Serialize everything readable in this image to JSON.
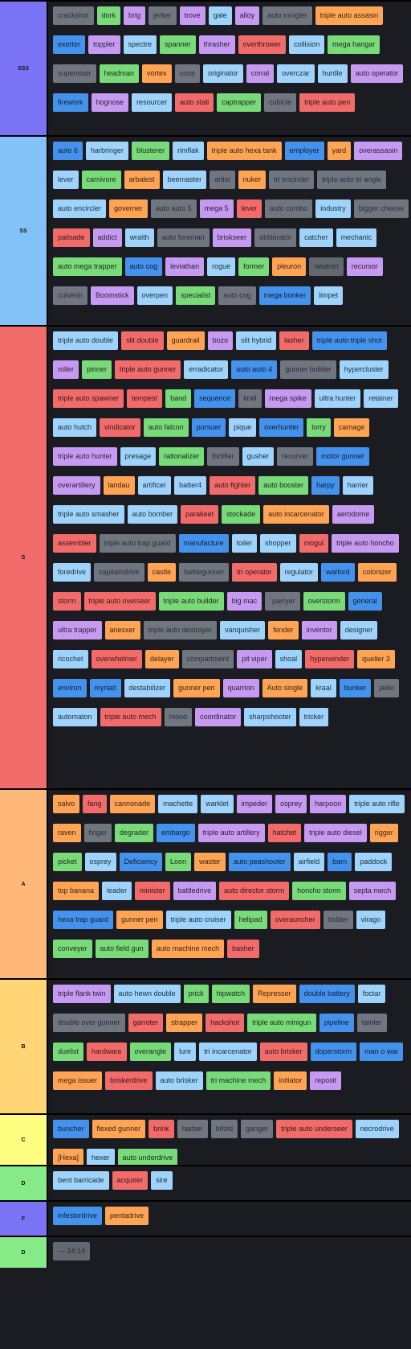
{
  "tiers": [
    {
      "label": "SSS",
      "color": "#7b73f5",
      "items": [
        [
          "crackshot",
          "gray"
        ],
        [
          "dork",
          "green"
        ],
        [
          "brig",
          "purple"
        ],
        [
          "jerker",
          "gray"
        ],
        [
          "trove",
          "purple"
        ],
        [
          "gale",
          "lblue"
        ],
        [
          "alloy",
          "purple"
        ],
        [
          "auto mingler",
          "gray"
        ],
        [
          "triple auto assasin",
          "orange"
        ],
        [
          "exerter",
          "blue"
        ],
        [
          "toppler",
          "purple"
        ],
        [
          "spectre",
          "lblue"
        ],
        [
          "spanner",
          "green"
        ],
        [
          "thrasher",
          "purple"
        ],
        [
          "overthrower",
          "red"
        ],
        [
          "collision",
          "lblue"
        ],
        [
          "mega hangar",
          "green"
        ],
        [
          "supervisor",
          "gray"
        ],
        [
          "headman",
          "green"
        ],
        [
          "vortex",
          "orange"
        ],
        [
          "coop",
          "gray"
        ],
        [
          "originator",
          "lblue"
        ],
        [
          "corral",
          "purple"
        ],
        [
          "overczar",
          "lblue"
        ],
        [
          "hurdle",
          "lblue"
        ],
        [
          "auto operator",
          "purple"
        ],
        [
          "firework",
          "blue"
        ],
        [
          "hognose",
          "purple"
        ],
        [
          "resourcer",
          "lblue"
        ],
        [
          "auto stall",
          "red"
        ],
        [
          "captrapper",
          "green"
        ],
        [
          "cubicle",
          "gray"
        ],
        [
          "triple auto pen",
          "red"
        ]
      ]
    },
    {
      "label": "SS",
      "color": "#82c2f8",
      "items": [
        [
          "auto 6",
          "blue"
        ],
        [
          "harbringer",
          "lblue"
        ],
        [
          "blusterer",
          "green"
        ],
        [
          "rimflak",
          "lblue"
        ],
        [
          "triple auto hexa tank",
          "orange"
        ],
        [
          "employer",
          "blue"
        ],
        [
          "yard",
          "orange"
        ],
        [
          "overassasin",
          "purple"
        ],
        [
          "lever",
          "lblue"
        ],
        [
          "carnivore",
          "green"
        ],
        [
          "arbalest",
          "orange"
        ],
        [
          "beemaster",
          "lblue"
        ],
        [
          "artist",
          "gray"
        ],
        [
          "nuker",
          "orange"
        ],
        [
          "tri encircler",
          "gray"
        ],
        [
          "triple auto tri angle",
          "gray"
        ],
        [
          "auto encircler",
          "lblue"
        ],
        [
          "governer",
          "orange"
        ],
        [
          "auto auto 5",
          "gray"
        ],
        [
          "mega 5",
          "purple"
        ],
        [
          "lever",
          "red"
        ],
        [
          "auto combo",
          "gray"
        ],
        [
          "industry",
          "lblue"
        ],
        [
          "bigger cheese",
          "gray"
        ],
        [
          "palisade",
          "red"
        ],
        [
          "addict",
          "purple"
        ],
        [
          "wraith",
          "lblue"
        ],
        [
          "auto foreman",
          "gray"
        ],
        [
          "briskseer",
          "purple"
        ],
        [
          "obliterator",
          "gray"
        ],
        [
          "catcher",
          "lblue"
        ],
        [
          "mechanic",
          "lblue"
        ],
        [
          "auto mega trapper",
          "green"
        ],
        [
          "auto cog",
          "blue"
        ],
        [
          "leviathan",
          "purple"
        ],
        [
          "rogue",
          "lblue"
        ],
        [
          "former",
          "green"
        ],
        [
          "pleuron",
          "orange"
        ],
        [
          "neutron",
          "dgray"
        ],
        [
          "recursor",
          "purple"
        ],
        [
          "culverin",
          "gray"
        ],
        [
          "Boomstick",
          "purple"
        ],
        [
          "overpen",
          "lblue"
        ],
        [
          "specialist",
          "green"
        ],
        [
          "auto cog",
          "gray"
        ],
        [
          "mega bonker",
          "blue"
        ],
        [
          "limpet",
          "lblue"
        ]
      ]
    },
    {
      "label": "S",
      "color": "#f26b6b",
      "items": [
        [
          "triple auto double",
          "lblue"
        ],
        [
          "slit double",
          "red"
        ],
        [
          "guardrail",
          "orange"
        ],
        [
          "bozo",
          "purple"
        ],
        [
          "slit hybrid",
          "lblue"
        ],
        [
          "lasher",
          "red"
        ],
        [
          "triple auto triple shot",
          "blue"
        ],
        [
          "roller",
          "purple"
        ],
        [
          "pinner",
          "green"
        ],
        [
          "triple auto gunner",
          "red"
        ],
        [
          "erradicator",
          "lblue"
        ],
        [
          "auto auto 4",
          "blue"
        ],
        [
          "gunner builder",
          "gray"
        ],
        [
          "hypercluster",
          "lblue"
        ],
        [
          "triple auto spawner",
          "red"
        ],
        [
          "tempest",
          "red"
        ],
        [
          "band",
          "green"
        ],
        [
          "sequence",
          "blue"
        ],
        [
          "krall",
          "gray"
        ],
        [
          "mega spike",
          "purple"
        ],
        [
          "ultra hunter",
          "lblue"
        ],
        [
          "retainer",
          "lblue"
        ],
        [
          "auto hutch",
          "lblue"
        ],
        [
          "vindicator",
          "red"
        ],
        [
          "auto falcon",
          "green"
        ],
        [
          "pursuer",
          "blue"
        ],
        [
          "pique",
          "lblue"
        ],
        [
          "overhunter",
          "blue"
        ],
        [
          "lorry",
          "green"
        ],
        [
          "carnage",
          "orange"
        ],
        [
          "triple auto hunter",
          "purple"
        ],
        [
          "presage",
          "lblue"
        ],
        [
          "rationalizer",
          "green"
        ],
        [
          "fortifier",
          "gray"
        ],
        [
          "gusher",
          "lblue"
        ],
        [
          "recurver",
          "gray"
        ],
        [
          "motor gunner",
          "blue"
        ],
        [
          "overartillery",
          "purple"
        ],
        [
          "landau",
          "orange"
        ],
        [
          "artificer",
          "lblue"
        ],
        [
          "batter4",
          "lblue"
        ],
        [
          "auto fighter",
          "red"
        ],
        [
          "auto booster",
          "green"
        ],
        [
          "harpy",
          "blue"
        ],
        [
          "harrier",
          "lblue"
        ],
        [
          "triple auto smasher",
          "lblue"
        ],
        [
          "auto bomber",
          "lblue"
        ],
        [
          "parakeet",
          "red"
        ],
        [
          "stockade",
          "green"
        ],
        [
          "auto incarcenator",
          "orange"
        ],
        [
          "aerodome",
          "purple"
        ],
        [
          "assembler",
          "red"
        ],
        [
          "triple auto trap guard",
          "gray"
        ],
        [
          "manufacture",
          "blue"
        ],
        [
          "toiler",
          "lblue"
        ],
        [
          "shopper",
          "lblue"
        ],
        [
          "mogul",
          "red"
        ],
        [
          "triple auto honcho",
          "purple"
        ],
        [
          "foredrive",
          "lblue"
        ],
        [
          "capitaindrive",
          "gray"
        ],
        [
          "castle",
          "orange"
        ],
        [
          "battlegunner",
          "gray"
        ],
        [
          "tri operator",
          "red"
        ],
        [
          "regulator",
          "lblue"
        ],
        [
          "warlord",
          "blue"
        ],
        [
          "colonizer",
          "orange"
        ],
        [
          "storm",
          "red"
        ],
        [
          "triple auto overseer",
          "red"
        ],
        [
          "triple auto builder",
          "green"
        ],
        [
          "big mac",
          "purple"
        ],
        [
          "`parryer",
          "gray"
        ],
        [
          "overstorm",
          "green"
        ],
        [
          "general",
          "blue"
        ],
        [
          "ultra trapper",
          "purple"
        ],
        [
          "anexxer",
          "orange"
        ],
        [
          "triple auto destroyer",
          "gray"
        ],
        [
          "vanquisher",
          "lblue"
        ],
        [
          "fender",
          "orange"
        ],
        [
          "inventor",
          "purple"
        ],
        [
          "designer",
          "lblue"
        ],
        [
          "ricochet",
          "lblue"
        ],
        [
          "overwhelmer",
          "red"
        ],
        [
          "delayer",
          "orange"
        ],
        [
          "compartment",
          "gray"
        ],
        [
          "pit viper",
          "purple"
        ],
        [
          "shoal",
          "lblue"
        ],
        [
          "hyperwinder",
          "red"
        ],
        [
          "queller 3",
          "orange"
        ],
        [
          "environ",
          "blue"
        ],
        [
          "myriad",
          "blue"
        ],
        [
          "destabilizer",
          "lblue"
        ],
        [
          "gunner pen",
          "orange"
        ],
        [
          "quarrion",
          "purple"
        ],
        [
          "Auto single",
          "orange"
        ],
        [
          "kraal",
          "lblue"
        ],
        [
          "bunker",
          "blue"
        ],
        [
          "jailer",
          "gray"
        ],
        [
          "automaton",
          "lblue"
        ],
        [
          "triple auto mech",
          "red"
        ],
        [
          "mono",
          "gray"
        ],
        [
          "coordinator",
          "purple"
        ],
        [
          "sharpshooter",
          "lblue"
        ],
        [
          "tricker",
          "lblue"
        ]
      ]
    },
    {
      "label": "A",
      "color": "#ffb878",
      "items": [
        [
          "salvo",
          "orange"
        ],
        [
          "fang",
          "red"
        ],
        [
          "cannonade",
          "orange"
        ],
        [
          "machette",
          "lblue"
        ],
        [
          "warklet",
          "lblue"
        ],
        [
          "impeder",
          "purple"
        ],
        [
          "osprey",
          "purple"
        ],
        [
          "harpoon",
          "purple"
        ],
        [
          "triple auto rifle",
          "lblue"
        ],
        [
          "raven",
          "orange"
        ],
        [
          "finger",
          "gray"
        ],
        [
          "degrader",
          "green"
        ],
        [
          "embargo",
          "blue"
        ],
        [
          "triple auto artillery",
          "purple"
        ],
        [
          "hatchet",
          "red"
        ],
        [
          "triple auto diesel",
          "purple"
        ],
        [
          "rigger",
          "orange"
        ],
        [
          "picket",
          "green"
        ],
        [
          "osprey",
          "lblue"
        ],
        [
          "Deficiency",
          "blue"
        ],
        [
          "Loon",
          "green"
        ],
        [
          "waster",
          "orange"
        ],
        [
          "auto peashooter",
          "blue"
        ],
        [
          "airfield",
          "lblue"
        ],
        [
          "barn",
          "blue"
        ],
        [
          "paddock",
          "lblue"
        ],
        [
          "top banana",
          "orange"
        ],
        [
          "leader",
          "lblue"
        ],
        [
          "minister",
          "red"
        ],
        [
          "battledrive",
          "purple"
        ],
        [
          "auto director storm",
          "red"
        ],
        [
          "honcho storm",
          "green"
        ],
        [
          "septa mech",
          "purple"
        ],
        [
          "hexa trap guard",
          "blue"
        ],
        [
          "gunner pen",
          "orange"
        ],
        [
          "triple auto cruiser",
          "lblue"
        ],
        [
          "helipad",
          "green"
        ],
        [
          "overauncher",
          "red"
        ],
        [
          "bidder",
          "gray"
        ],
        [
          "virago",
          "lblue"
        ],
        [
          "conveyer",
          "green"
        ],
        [
          "auto field gun",
          "green"
        ],
        [
          "auto machine mech",
          "orange"
        ],
        [
          "basher",
          "red"
        ]
      ]
    },
    {
      "label": "B",
      "color": "#ffd575",
      "items": [
        [
          "triple flank twin",
          "purple"
        ],
        [
          "auto hewn double",
          "lblue"
        ],
        [
          "prick",
          "green"
        ],
        [
          "hipwatch",
          "green"
        ],
        [
          "Represser",
          "orange"
        ],
        [
          "double battery",
          "blue"
        ],
        [
          "foctar",
          "lblue"
        ],
        [
          "double over gunner",
          "gray"
        ],
        [
          "garroter",
          "red"
        ],
        [
          "strapper",
          "orange"
        ],
        [
          "hackshot",
          "red"
        ],
        [
          "triple auto minigun",
          "green"
        ],
        [
          "pipeline",
          "blue"
        ],
        [
          "tainter",
          "gray"
        ],
        [
          "duelist",
          "green"
        ],
        [
          "hardware",
          "red"
        ],
        [
          "overangle",
          "green"
        ],
        [
          "lure",
          "lblue"
        ],
        [
          "tri incarcenator",
          "lblue"
        ],
        [
          "auto brisker",
          "red"
        ],
        [
          "doperstorm",
          "blue"
        ],
        [
          "man o war",
          "blue"
        ],
        [
          "mega issuer",
          "orange"
        ],
        [
          "briskerdrive",
          "red"
        ],
        [
          "auto brisker",
          "lblue"
        ],
        [
          "tri machine mech",
          "green"
        ],
        [
          "initiator",
          "orange"
        ],
        [
          "reposit",
          "purple"
        ]
      ]
    },
    {
      "label": "C",
      "color": "#fdfd80",
      "items": [
        [
          "buncher",
          "blue"
        ],
        [
          "flexed gunner",
          "orange"
        ],
        [
          "brink",
          "red"
        ],
        [
          "barber",
          "gray"
        ],
        [
          "bifold",
          "gray"
        ],
        [
          "ganger",
          "gray"
        ],
        [
          "triple auto underseer",
          "red"
        ],
        [
          "necrodrive",
          "lblue"
        ],
        [
          "[Hexa]",
          "orange"
        ],
        [
          "hexer",
          "lblue"
        ],
        [
          "auto underdrive",
          "green"
        ]
      ]
    },
    {
      "label": "D",
      "color": "#86ea86",
      "items": [
        [
          "bent barricade",
          "lblue"
        ],
        [
          "acquirer",
          "red"
        ],
        [
          "sire",
          "lblue"
        ]
      ]
    },
    {
      "label": "F",
      "color": "#7b73f5",
      "items": [
        [
          "infestordrive",
          "blue"
        ],
        [
          "pentadrive",
          "orange"
        ]
      ]
    },
    {
      "label": "D",
      "color": "#86ea86",
      "items": [
        [
          "— 14:14",
          "dgray"
        ]
      ]
    }
  ]
}
